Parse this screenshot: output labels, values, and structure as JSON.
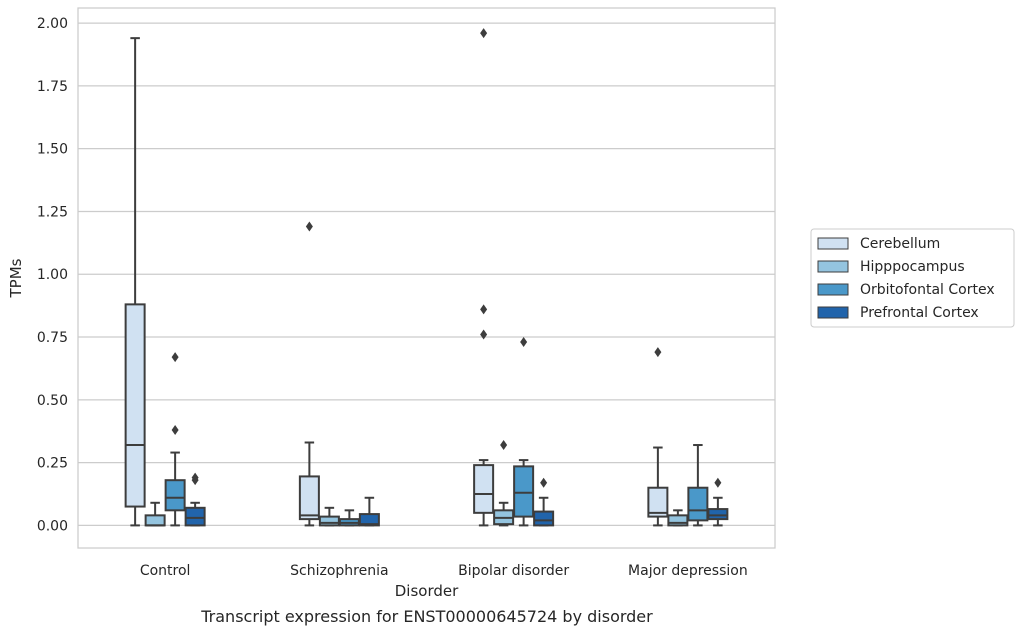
{
  "chart_data": {
    "type": "box",
    "caption": "Transcript expression for ENST00000645724 by disorder",
    "xlabel": "Disorder",
    "ylabel": "TPMs",
    "ylim": [
      -0.09,
      2.06
    ],
    "yticks": [
      "0.00",
      "0.25",
      "0.50",
      "0.75",
      "1.00",
      "1.25",
      "1.50",
      "1.75",
      "2.00"
    ],
    "ytick_values": [
      0,
      0.25,
      0.5,
      0.75,
      1.0,
      1.25,
      1.5,
      1.75,
      2.0
    ],
    "grid": "horizontal",
    "legend_position": "right",
    "categories": [
      "Control",
      "Schizophrenia",
      "Bipolar disorder",
      "Major depression"
    ],
    "series": [
      {
        "name": "Cerebellum",
        "color": "#d0e1f2",
        "boxes": [
          {
            "whislo": 0.0,
            "q1": 0.075,
            "med": 0.32,
            "q3": 0.88,
            "whishi": 1.94,
            "fliers": []
          },
          {
            "whislo": 0.0,
            "q1": 0.025,
            "med": 0.04,
            "q3": 0.195,
            "whishi": 0.33,
            "fliers": [
              1.19
            ]
          },
          {
            "whislo": 0.0,
            "q1": 0.05,
            "med": 0.125,
            "q3": 0.24,
            "whishi": 0.26,
            "fliers": [
              1.96,
              0.86,
              0.76
            ]
          },
          {
            "whislo": 0.0,
            "q1": 0.035,
            "med": 0.05,
            "q3": 0.15,
            "whishi": 0.31,
            "fliers": [
              0.69
            ]
          }
        ]
      },
      {
        "name": "Hipppocampus",
        "color": "#94c4df",
        "boxes": [
          {
            "whislo": 0.0,
            "q1": 0.0,
            "med": 0.0,
            "q3": 0.04,
            "whishi": 0.09,
            "fliers": []
          },
          {
            "whislo": 0.0,
            "q1": 0.0,
            "med": 0.01,
            "q3": 0.035,
            "whishi": 0.07,
            "fliers": []
          },
          {
            "whislo": 0.0,
            "q1": 0.005,
            "med": 0.03,
            "q3": 0.06,
            "whishi": 0.09,
            "fliers": [
              0.32
            ]
          },
          {
            "whislo": 0.0,
            "q1": 0.0,
            "med": 0.01,
            "q3": 0.04,
            "whishi": 0.06,
            "fliers": []
          }
        ]
      },
      {
        "name": "Orbitofontal Cortex",
        "color": "#4a98c9",
        "boxes": [
          {
            "whislo": 0.0,
            "q1": 0.06,
            "med": 0.11,
            "q3": 0.18,
            "whishi": 0.29,
            "fliers": [
              0.67,
              0.38
            ]
          },
          {
            "whislo": 0.0,
            "q1": 0.0,
            "med": 0.01,
            "q3": 0.025,
            "whishi": 0.06,
            "fliers": []
          },
          {
            "whislo": 0.0,
            "q1": 0.035,
            "med": 0.13,
            "q3": 0.235,
            "whishi": 0.26,
            "fliers": [
              0.73
            ]
          },
          {
            "whislo": 0.0,
            "q1": 0.02,
            "med": 0.06,
            "q3": 0.15,
            "whishi": 0.32,
            "fliers": []
          }
        ]
      },
      {
        "name": "Prefrontal Cortex",
        "color": "#2164ab",
        "boxes": [
          {
            "whislo": 0.0,
            "q1": 0.0,
            "med": 0.03,
            "q3": 0.07,
            "whishi": 0.09,
            "fliers": [
              0.19,
              0.18
            ]
          },
          {
            "whislo": 0.0,
            "q1": 0.0,
            "med": 0.005,
            "q3": 0.045,
            "whishi": 0.11,
            "fliers": []
          },
          {
            "whislo": 0.0,
            "q1": 0.0,
            "med": 0.02,
            "q3": 0.055,
            "whishi": 0.11,
            "fliers": [
              0.17
            ]
          },
          {
            "whislo": 0.0,
            "q1": 0.025,
            "med": 0.04,
            "q3": 0.065,
            "whishi": 0.11,
            "fliers": [
              0.17
            ]
          }
        ]
      }
    ]
  }
}
